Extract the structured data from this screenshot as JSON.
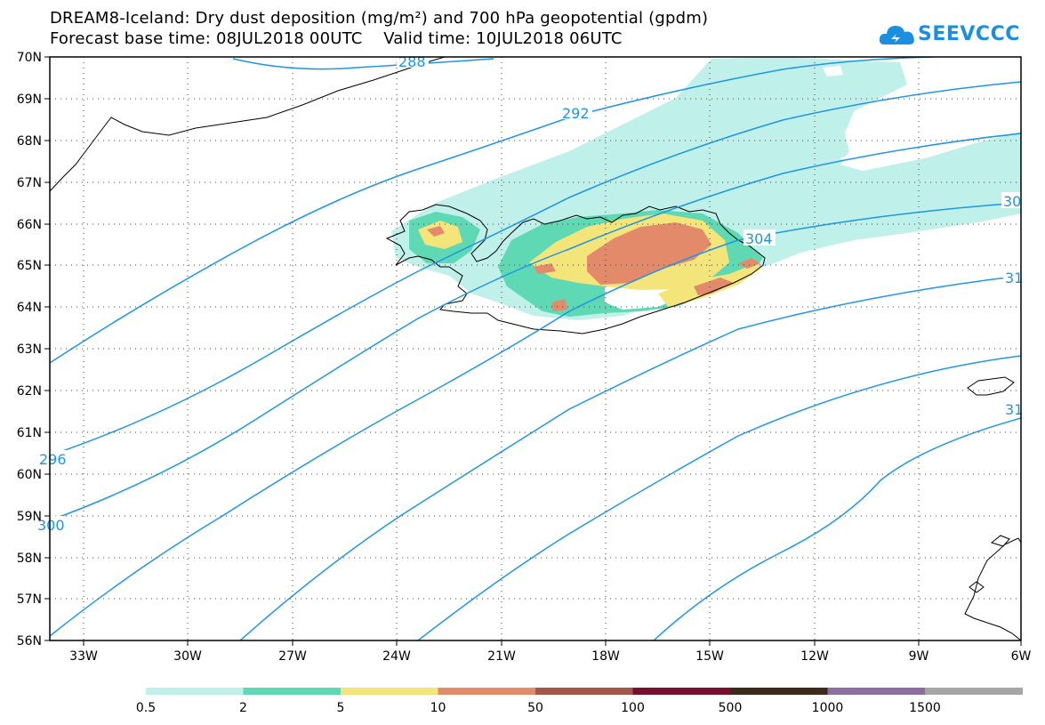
{
  "title": {
    "line1": "DREAM8-Iceland: Dry dust deposition (mg/m²) and 700 hPa geopotential (gpdm)",
    "line2": "Forecast base time: 08JUL2018 00UTC    Valid time: 10JUL2018 06UTC"
  },
  "logo": {
    "text": "SEEVCCC",
    "icon": "cloud-icon",
    "color": "#1a8fe0"
  },
  "map": {
    "lat_labels": [
      "70N",
      "69N",
      "68N",
      "67N",
      "66N",
      "65N",
      "64N",
      "63N",
      "62N",
      "61N",
      "60N",
      "59N",
      "58N",
      "57N",
      "56N"
    ],
    "lon_labels": [
      "33W",
      "30W",
      "27W",
      "24W",
      "21W",
      "18W",
      "15W",
      "12W",
      "9W",
      "6W"
    ],
    "lat_range": [
      56,
      70
    ],
    "lon_range": [
      -34.3,
      -6
    ],
    "contour_color": "#1e96e6",
    "contour_labels": [
      "288",
      "292",
      "296",
      "300",
      "304",
      "30",
      "31",
      "31"
    ]
  },
  "legend": {
    "labels": [
      "0.5",
      "2",
      "5",
      "10",
      "50",
      "100",
      "500",
      "1000",
      "1500"
    ],
    "colors": [
      "#bff0ea",
      "#5ed9b4",
      "#f3e57a",
      "#e38a6a",
      "#a5564a",
      "#7a1030",
      "#3c2a1c",
      "#8e6ea0",
      "#a6a6a6"
    ]
  }
}
